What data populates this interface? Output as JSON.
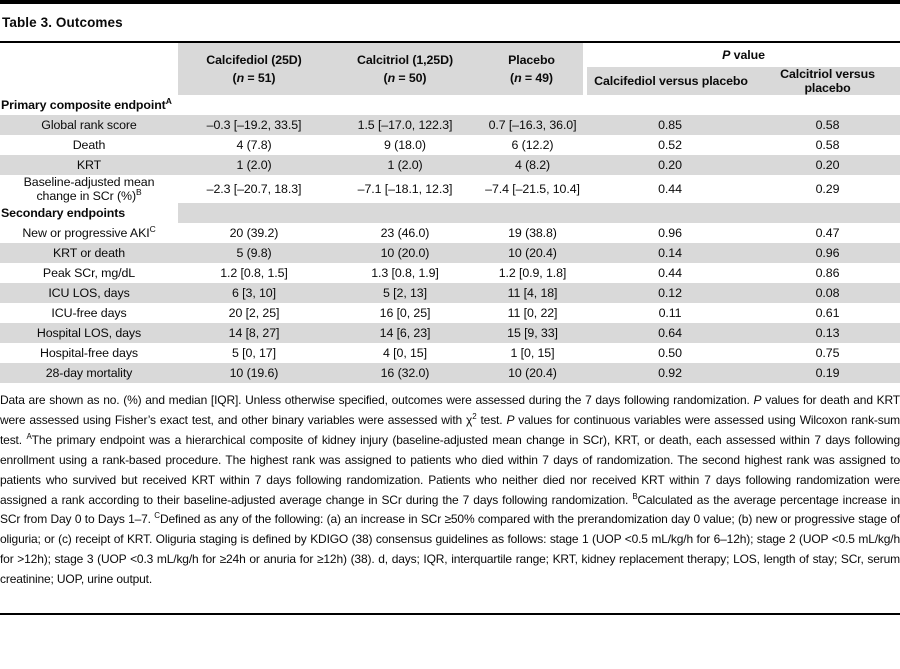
{
  "title": "Table 3. Outcomes",
  "colors": {
    "stripe": "#d9d9d9",
    "rule": "#000000",
    "text": "#0a0a0a"
  },
  "table": {
    "groups": [
      {
        "name": "Calcifediol (25D)",
        "n_line": [
          {
            "t": "("
          },
          {
            "t": "n",
            "s": "i"
          },
          {
            "t": " = 51)"
          }
        ]
      },
      {
        "name": "Calcitriol (1,25D)",
        "n_line": [
          {
            "t": "("
          },
          {
            "t": "n",
            "s": "i"
          },
          {
            "t": " = 50)"
          }
        ]
      },
      {
        "name": "Placebo",
        "n_line": [
          {
            "t": "("
          },
          {
            "t": "n",
            "s": "i"
          },
          {
            "t": " = 49)"
          }
        ]
      }
    ],
    "p_label": [
      {
        "t": "P",
        "s": "i"
      },
      {
        "t": " value"
      }
    ],
    "sub_headers": [
      "Calcifediol versus placebo",
      "Calcitriol versus placebo"
    ],
    "rows": [
      {
        "type": "section",
        "label": "Primary composite endpoint",
        "sup": "A",
        "shaded": false
      },
      {
        "type": "data",
        "label": "Global rank score",
        "cells": [
          "–0.3 [–19.2, 33.5]",
          "1.5 [–17.0, 122.3]",
          "0.7 [–16.3, 36.0]",
          "0.85",
          "0.58"
        ],
        "shaded": true
      },
      {
        "type": "data",
        "label": "Death",
        "cells": [
          "4 (7.8)",
          "9 (18.0)",
          "6 (12.2)",
          "0.52",
          "0.58"
        ],
        "shaded": false
      },
      {
        "type": "data",
        "label": "KRT",
        "cells": [
          "1 (2.0)",
          "1 (2.0)",
          "4 (8.2)",
          "0.20",
          "0.20"
        ],
        "shaded": true
      },
      {
        "type": "data",
        "label": "Baseline-adjusted mean change in SCr (%)",
        "sup": "B",
        "cells": [
          "–2.3 [–20.7, 18.3]",
          "–7.1 [–18.1, 12.3]",
          "–7.4 [–21.5, 10.4]",
          "0.44",
          "0.29"
        ],
        "shaded": false
      },
      {
        "type": "section",
        "label": "Secondary endpoints",
        "shaded": true
      },
      {
        "type": "data",
        "label": "New or progressive AKI",
        "sup": "C",
        "cells": [
          "20 (39.2)",
          "23 (46.0)",
          "19 (38.8)",
          "0.96",
          "0.47"
        ],
        "shaded": false
      },
      {
        "type": "data",
        "label": "KRT or death",
        "cells": [
          "5 (9.8)",
          "10 (20.0)",
          "10 (20.4)",
          "0.14",
          "0.96"
        ],
        "shaded": true
      },
      {
        "type": "data",
        "label": "Peak SCr, mg/dL",
        "cells": [
          "1.2 [0.8, 1.5]",
          "1.3 [0.8, 1.9]",
          "1.2 [0.9, 1.8]",
          "0.44",
          "0.86"
        ],
        "shaded": false
      },
      {
        "type": "data",
        "label": "ICU LOS, days",
        "cells": [
          "6 [3, 10]",
          "5 [2, 13]",
          "11 [4, 18]",
          "0.12",
          "0.08"
        ],
        "shaded": true
      },
      {
        "type": "data",
        "label": "ICU-free days",
        "cells": [
          "20 [2, 25]",
          "16 [0, 25]",
          "11 [0, 22]",
          "0.11",
          "0.61"
        ],
        "shaded": false
      },
      {
        "type": "data",
        "label": "Hospital LOS, days",
        "cells": [
          "14 [8, 27]",
          "14 [6, 23]",
          "15 [9, 33]",
          "0.64",
          "0.13"
        ],
        "shaded": true
      },
      {
        "type": "data",
        "label": "Hospital-free days",
        "cells": [
          "5 [0, 17]",
          "4 [0, 15]",
          "1 [0, 15]",
          "0.50",
          "0.75"
        ],
        "shaded": false
      },
      {
        "type": "data",
        "label": "28-day mortality",
        "cells": [
          "10 (19.6)",
          "16 (32.0)",
          "10 (20.4)",
          "0.92",
          "0.19"
        ],
        "shaded": true
      }
    ]
  },
  "footnote": [
    {
      "t": "Data are shown as no. (%) and median [IQR]. Unless otherwise specified, outcomes were assessed during the 7 days following randomization. "
    },
    {
      "t": "P",
      "s": "i"
    },
    {
      "t": " values for death and KRT were assessed using Fisher’s exact test, and other binary variables were assessed with χ"
    },
    {
      "t": "2",
      "s": "sup"
    },
    {
      "t": " test. "
    },
    {
      "t": "P",
      "s": "i"
    },
    {
      "t": " values for continuous variables were assessed using Wilcoxon rank-sum test. "
    },
    {
      "t": "A",
      "s": "sup"
    },
    {
      "t": "The primary endpoint was a hierarchical composite of kidney injury (baseline-adjusted mean change in SCr), KRT, or death, each assessed within 7 days following enrollment using a rank-based procedure. The highest rank was assigned to patients who died within 7 days of randomization. The second highest rank was assigned to patients who survived but received KRT within 7 days following randomization. Patients who neither died nor received KRT within 7 days following randomization were assigned a rank according to their baseline-adjusted average change in SCr during the 7 days following randomization. "
    },
    {
      "t": "B",
      "s": "sup"
    },
    {
      "t": "Calculated as the average percentage increase in SCr from Day 0 to Days 1–7. "
    },
    {
      "t": "C",
      "s": "sup"
    },
    {
      "t": "Defined as any of the following: (a) an increase in SCr ≥50% compared with the prerandomization day 0 value; (b) new or progressive stage of oliguria; or (c) receipt of KRT. Oliguria staging is defined by KDIGO (38) consensus guidelines as follows: stage 1 (UOP <0.5 mL/kg/h for 6–12h); stage 2 (UOP <0.5 mL/kg/h for >12h); stage 3 (UOP <0.3 mL/kg/h for ≥24h or anuria for ≥12h) (38). d, days; IQR, interquartile range; KRT, kidney replacement therapy; LOS, length of stay; SCr, serum creatinine; UOP, urine output."
    }
  ]
}
